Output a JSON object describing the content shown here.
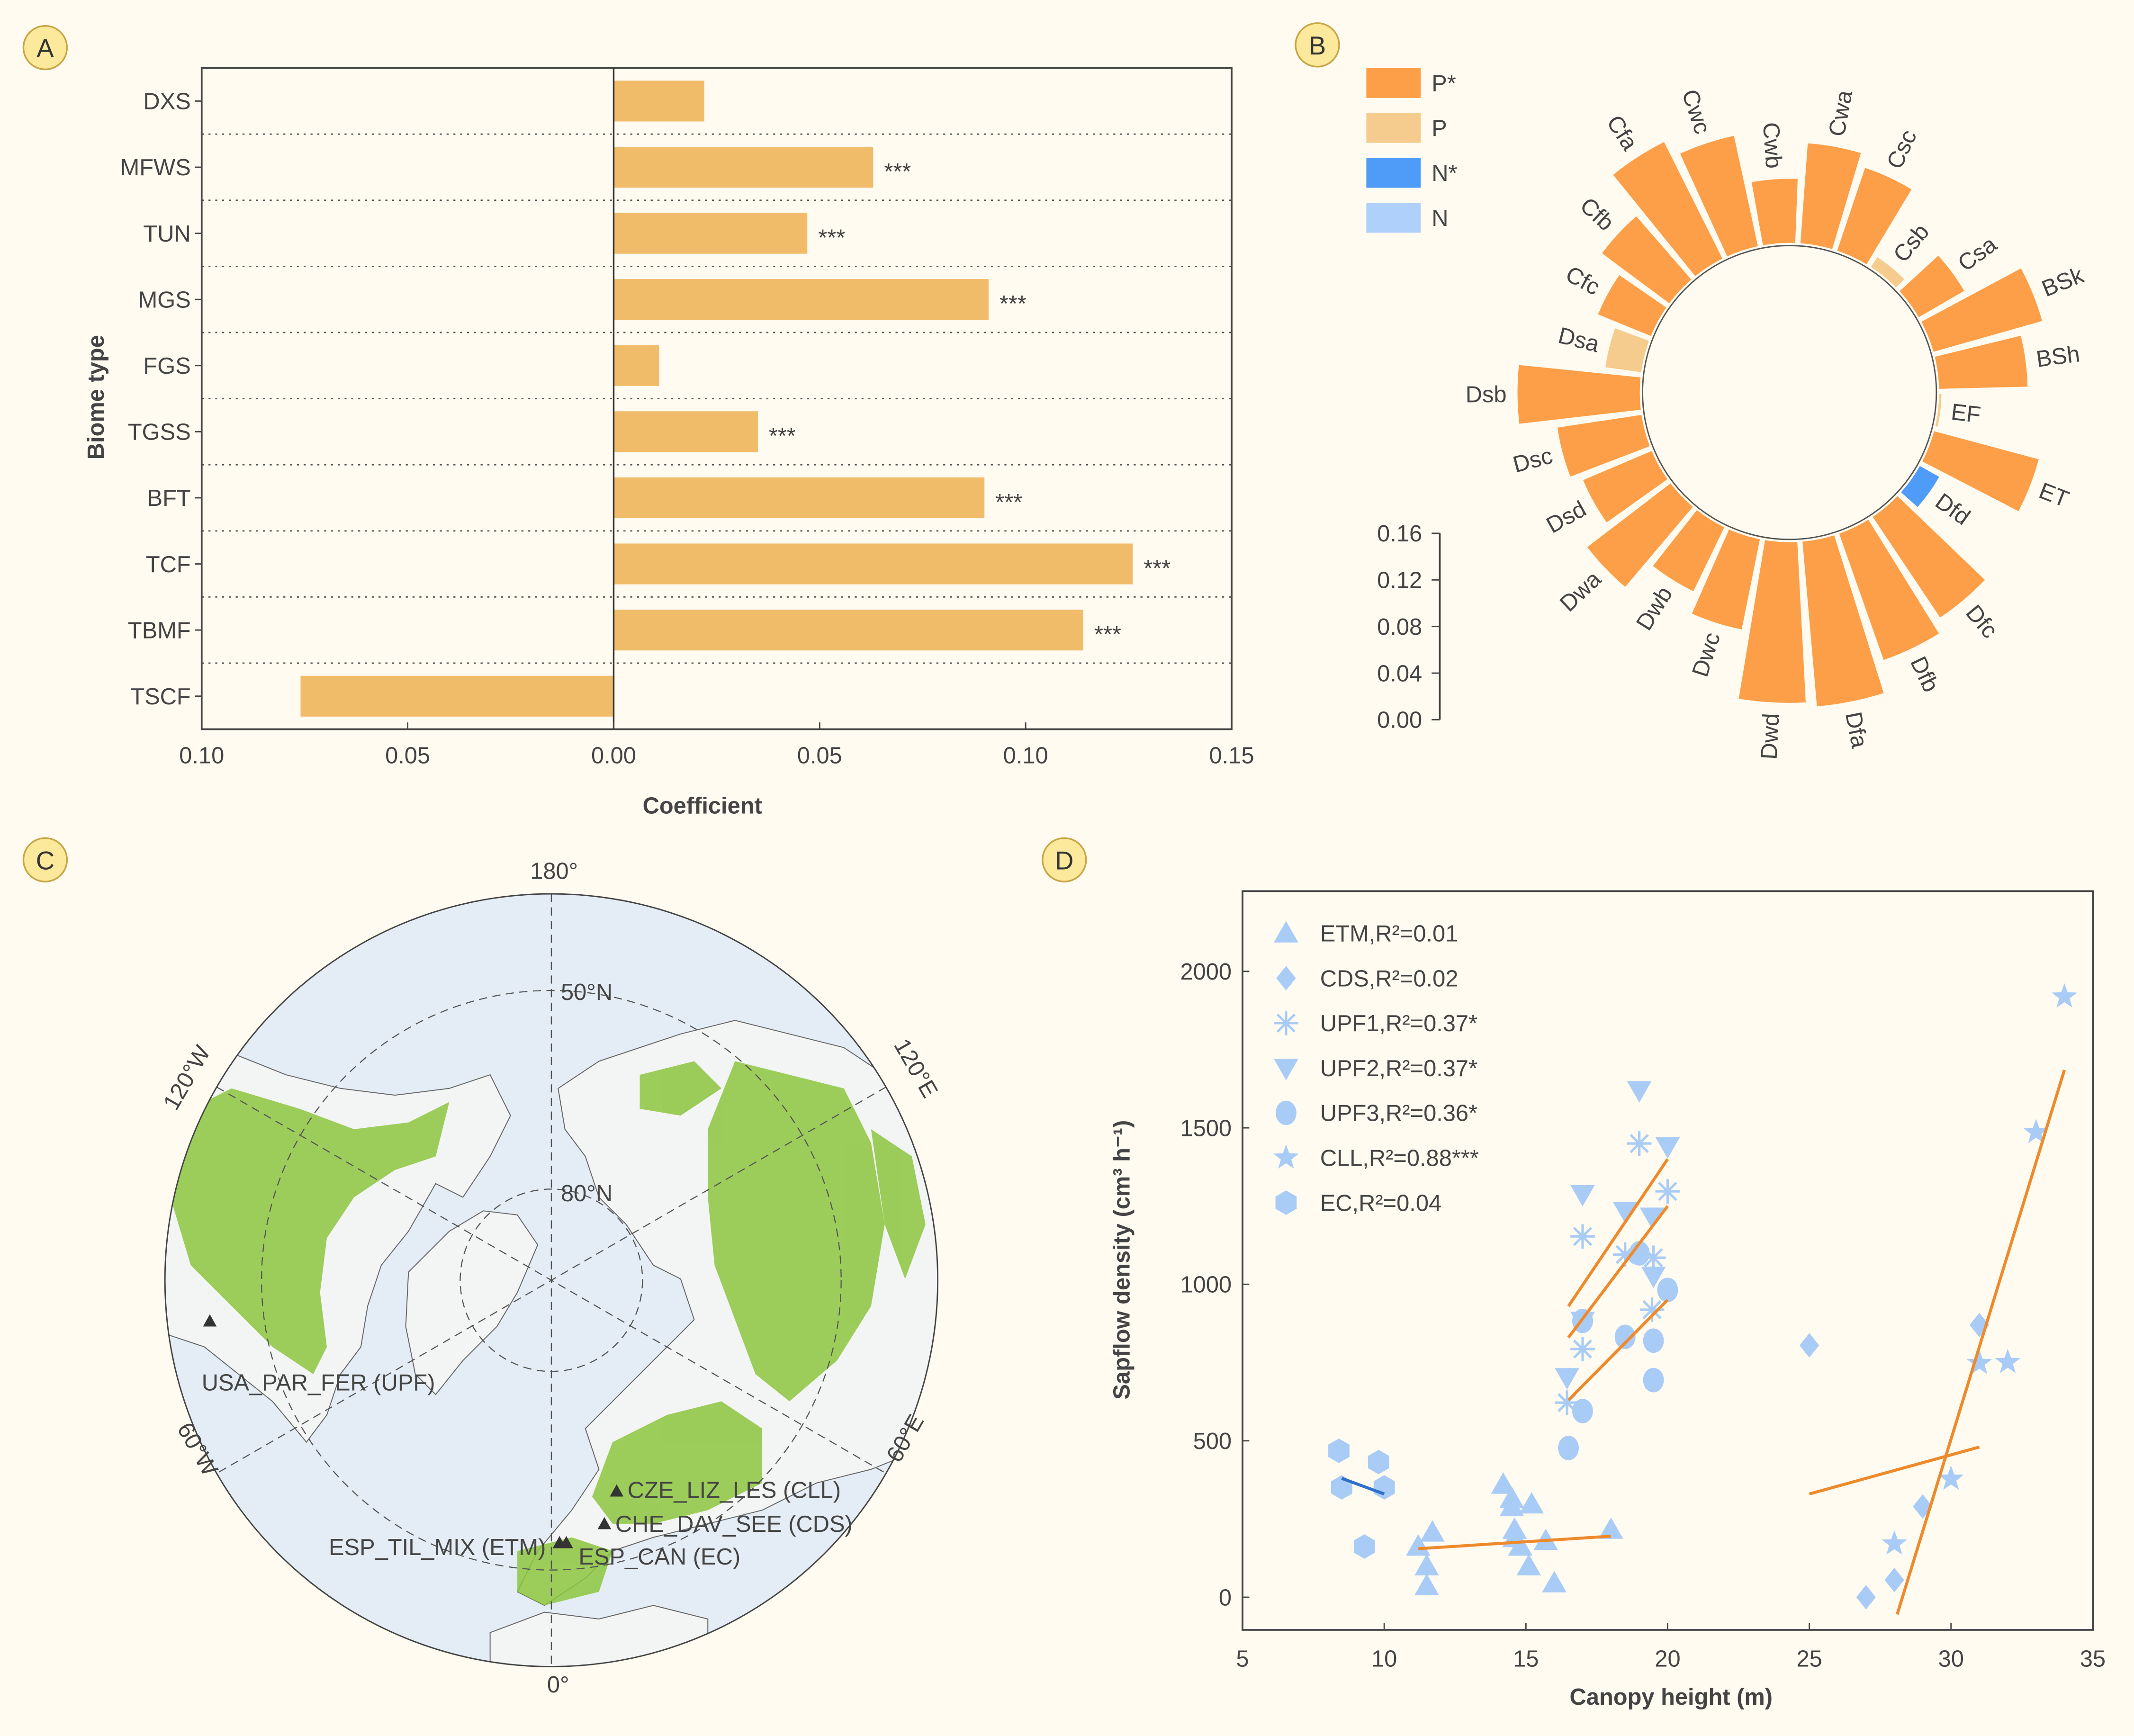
{
  "panels": {
    "a": "A",
    "b": "B",
    "c": "C",
    "d": "D"
  },
  "colors": {
    "background": "#fffbf0",
    "bar_a": "#f1bc6a",
    "p_star": "#fd9f48",
    "p": "#f5cc8e",
    "n_star": "#4e9cf7",
    "n": "#aed0fb",
    "points": "#a9ccf6",
    "fit_orange": "#ee8a2c",
    "fit_blue": "#2f6fc8",
    "ocean": "#e4edf6",
    "land": "#f3f4f4",
    "vegetation": "#8cc63f"
  },
  "chart_data": [
    {
      "type": "bar",
      "orientation": "horizontal",
      "categories": [
        "DXS",
        "MFWS",
        "TUN",
        "MGS",
        "FGS",
        "TGSS",
        "BFT",
        "TCF",
        "TBMF",
        "TSCF"
      ],
      "values": [
        0.022,
        0.063,
        0.047,
        0.091,
        0.011,
        0.035,
        0.09,
        0.126,
        0.114,
        -0.076
      ],
      "significance": [
        "",
        "***",
        "***",
        "***",
        "",
        "***",
        "***",
        "***",
        "***",
        ""
      ],
      "xlabel": "Coefficient",
      "ylabel": "Biome type",
      "xlim": [
        -0.1,
        0.15
      ],
      "xticks": [
        -0.1,
        -0.05,
        0.0,
        0.05,
        0.1,
        0.15
      ],
      "xtick_labels": [
        "0.10",
        "0.05",
        "0.00",
        "0.05",
        "0.10",
        "0.15"
      ],
      "grid": "dotted separators between categories"
    },
    {
      "type": "bar",
      "layout": "circular",
      "categories": [
        "Cwb",
        "Cwa",
        "Csc",
        "Csb",
        "Csa",
        "BSk",
        "BSh",
        "EF",
        "ET",
        "Dfd",
        "Dfc",
        "Dfb",
        "Dfa",
        "Dwd",
        "Dwc",
        "Dwb",
        "Dwa",
        "Dsd",
        "Dsc",
        "Dsb",
        "Dsa",
        "Cfc",
        "Cfb",
        "Cfa",
        "Cwc"
      ],
      "values": [
        0.055,
        0.086,
        0.075,
        0.01,
        0.045,
        0.097,
        0.076,
        0.002,
        0.093,
        0.019,
        0.104,
        0.115,
        0.142,
        0.138,
        0.079,
        0.061,
        0.09,
        0.064,
        0.073,
        0.105,
        0.031,
        0.049,
        0.072,
        0.112,
        0.097
      ],
      "class": [
        "P*",
        "P*",
        "P*",
        "P",
        "P*",
        "P*",
        "P*",
        "P",
        "P*",
        "N*",
        "P*",
        "P*",
        "P*",
        "P*",
        "P*",
        "P*",
        "P*",
        "P*",
        "P*",
        "P*",
        "P",
        "P*",
        "P*",
        "P*",
        "P*"
      ],
      "legend": [
        "P*",
        "P",
        "N*",
        "N"
      ],
      "legend_position": "top-left",
      "scale_ticks": [
        "0.16",
        "0.12",
        "0.08",
        "0.04",
        "0.00"
      ],
      "ylim": [
        0,
        0.16
      ]
    },
    {
      "type": "scatter",
      "xlabel": "Canopy height (m)",
      "ylabel": "Sapflow density (cm³ h⁻¹)",
      "xlim": [
        5,
        35
      ],
      "ylim": [
        -100,
        2250
      ],
      "xticks": [
        "5",
        "10",
        "15",
        "20",
        "25",
        "30",
        "35"
      ],
      "yticks": [
        "0",
        "500",
        "1000",
        "1500",
        "2000"
      ],
      "legend_position": "top-left",
      "series": [
        {
          "name": "ETM,R²=0.01",
          "marker": "triangle-up",
          "x": [
            14.2,
            14.5,
            15.2,
            14.5,
            11.7,
            11.2,
            14.6,
            14.6,
            14.8,
            15.7,
            18.0,
            11.5,
            15.1,
            11.5,
            16.0
          ],
          "y": [
            360,
            315,
            297,
            288,
            207,
            162,
            216,
            189,
            162,
            180,
            216,
            99,
            99,
            36,
            45
          ],
          "fit": {
            "x": [
              11.2,
              18.0
            ],
            "y": [
              155,
              195
            ],
            "color": "#ee8a2c"
          }
        },
        {
          "name": "CDS,R²=0.02",
          "marker": "diamond",
          "x": [
            25,
            31,
            29,
            28,
            27
          ],
          "y": [
            805,
            870,
            290,
            55,
            0
          ],
          "fit": {
            "x": [
              25,
              31
            ],
            "y": [
              330,
              480
            ],
            "color": "#ee8a2c"
          }
        },
        {
          "name": "UPF1,R²=0.37*",
          "marker": "asterisk",
          "x": [
            19,
            20,
            17,
            18.5,
            19.5,
            19.45,
            17,
            16.45
          ],
          "y": [
            1450,
            1297,
            1153,
            1095,
            1085,
            919,
            793,
            622
          ],
          "fit": {
            "x": [
              16.5,
              20
            ],
            "y": [
              830,
              1250
            ],
            "color": "#ee8a2c"
          }
        },
        {
          "name": "UPF2,R²=0.37*",
          "marker": "triangle-down",
          "x": [
            19,
            20,
            17,
            18.5,
            19.45,
            19.5,
            16.45,
            17
          ],
          "y": [
            1620,
            1441,
            1288,
            1234,
            1216,
            1027,
            703,
            883
          ],
          "fit": {
            "x": [
              16.5,
              20
            ],
            "y": [
              930,
              1400
            ],
            "color": "#ee8a2c"
          }
        },
        {
          "name": "UPF3,R²=0.36*",
          "marker": "circle",
          "x": [
            19,
            20,
            17,
            18.5,
            19.5,
            19.5,
            17,
            16.5
          ],
          "y": [
            1099,
            982,
            883,
            832,
            820,
            694,
            595,
            477
          ],
          "fit": {
            "x": [
              16.5,
              20
            ],
            "y": [
              630,
              950
            ],
            "color": "#ee8a2c"
          }
        },
        {
          "name": "CLL,R²=0.88***",
          "marker": "star",
          "x": [
            34,
            33,
            31,
            32,
            30,
            28
          ],
          "y": [
            1919,
            1486,
            748,
            751,
            378,
            171
          ],
          "fit": {
            "x": [
              28.1,
              34
            ],
            "y": [
              -55,
              1685
            ],
            "color": "#ee8a2c"
          }
        },
        {
          "name": "EC,R²=0.04",
          "marker": "hexagon",
          "x": [
            8.4,
            9.8,
            8.5,
            10,
            9.3
          ],
          "y": [
            468,
            432,
            351,
            351,
            162
          ],
          "fit": {
            "x": [
              8.5,
              10
            ],
            "y": [
              380,
              330
            ],
            "color": "#2f6fc8"
          }
        }
      ]
    }
  ],
  "map": {
    "longitude_labels": {
      "top": "180°",
      "bottom": "0°",
      "w120": "120°W",
      "e120": "120°E",
      "w60": "60°W",
      "e60": "60°E"
    },
    "latitude_labels": {
      "lat50": "50°N",
      "lat80": "80°N"
    },
    "sites": [
      {
        "label": "USA_PAR_FER (UPF)"
      },
      {
        "label": "CZE_LIZ_LES (CLL)"
      },
      {
        "label": "CHE_DAV_SEE (CDS)"
      },
      {
        "label": "ESP_TIL_MIX (ETM)"
      },
      {
        "label": "ESP_CAN (EC)"
      }
    ]
  }
}
